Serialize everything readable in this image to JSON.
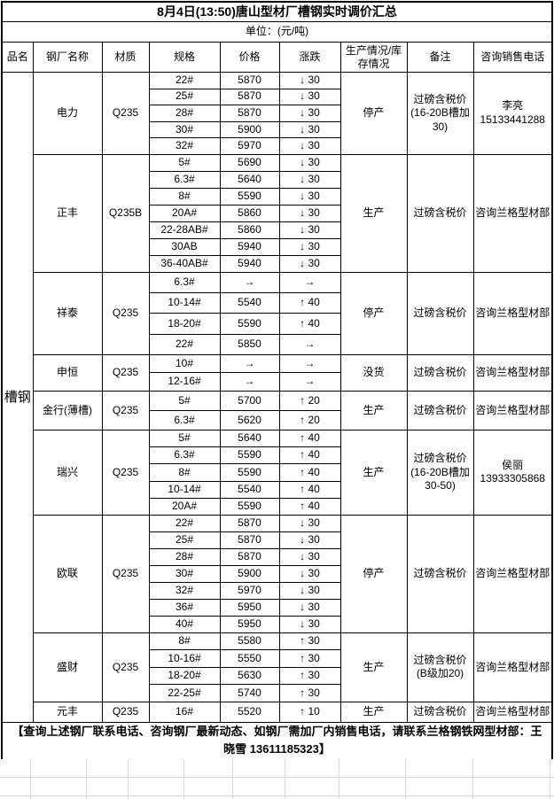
{
  "title": "8月4日(13:50)唐山型材厂槽钢实时调价汇总",
  "unit_label": "单位：(元/吨)",
  "product_name": "槽钢",
  "columns": [
    "品名",
    "钢厂名称",
    "材质",
    "规格",
    "价格",
    "涨跌",
    "生产情况/库存情况",
    "备注",
    "咨询销售电话"
  ],
  "mills": [
    {
      "name": "电力",
      "material": "Q235",
      "status": "停产",
      "remark": "过磅含税价(16-20B槽加30)",
      "contact": [
        "李亮",
        "15133441288"
      ],
      "rows": [
        [
          "22#",
          "5870",
          "↓ 30"
        ],
        [
          "25#",
          "5870",
          "↓ 30"
        ],
        [
          "28#",
          "5870",
          "↓ 30"
        ],
        [
          "30#",
          "5900",
          "↓ 30"
        ],
        [
          "32#",
          "5970",
          "↓ 30"
        ]
      ]
    },
    {
      "name": "正丰",
      "material": "Q235B",
      "status": "生产",
      "remark": "过磅含税价",
      "contact": [
        "咨询兰格型材部"
      ],
      "rows": [
        [
          "5#",
          "5690",
          "↓ 30"
        ],
        [
          "6.3#",
          "5640",
          "↓ 30"
        ],
        [
          "8#",
          "5590",
          "↓ 30"
        ],
        [
          "20A#",
          "5860",
          "↓ 30"
        ],
        [
          "22-28AB#",
          "5860",
          "↓ 30"
        ],
        [
          "30AB",
          "5940",
          "↓ 30"
        ],
        [
          "36-40AB#",
          "5940",
          "↓ 30"
        ]
      ]
    },
    {
      "name": "祥泰",
      "material": "Q235",
      "status": "停产",
      "remark": "过磅含税价",
      "contact": [
        "咨询兰格型材部"
      ],
      "rows": [
        [
          "6.3#",
          "→",
          "→"
        ],
        [
          "10-14#",
          "5540",
          "↑ 40"
        ],
        [
          "18-20#",
          "5590",
          "↑ 40"
        ],
        [
          "22#",
          "5850",
          "→"
        ]
      ]
    },
    {
      "name": "申恒",
      "material": "Q235",
      "status": "没货",
      "remark": "过磅含税价",
      "contact": [
        "咨询兰格型材部"
      ],
      "rows": [
        [
          "10#",
          "→",
          "→"
        ],
        [
          "12-16#",
          "→",
          "→"
        ]
      ]
    },
    {
      "name": "金行(薄槽)",
      "material": "Q235",
      "status": "生产",
      "remark": "过磅含税价",
      "contact": [
        "咨询兰格型材部"
      ],
      "rows": [
        [
          "5#",
          "5700",
          "↑ 20"
        ],
        [
          "6.3#",
          "5620",
          "↑ 20"
        ]
      ]
    },
    {
      "name": "瑞兴",
      "material": "Q235",
      "status": "生产",
      "remark": "过磅含税价(16-20B槽加30-50)",
      "contact": [
        "侯丽",
        "13933305868"
      ],
      "rows": [
        [
          "5#",
          "5640",
          "↑ 40"
        ],
        [
          "6.3#",
          "5590",
          "↑ 40"
        ],
        [
          "8#",
          "5590",
          "↑ 40"
        ],
        [
          "10-14#",
          "5540",
          "↑ 40"
        ],
        [
          "20A#",
          "5590",
          "↑ 40"
        ]
      ]
    },
    {
      "name": "欧联",
      "material": "Q235",
      "status": "停产",
      "remark": "过磅含税价",
      "contact": [
        "咨询兰格型材部"
      ],
      "rows": [
        [
          "22#",
          "5870",
          "↓ 30"
        ],
        [
          "25#",
          "5870",
          "↓ 30"
        ],
        [
          "28#",
          "5870",
          "↓ 30"
        ],
        [
          "30#",
          "5900",
          "↓ 30"
        ],
        [
          "32#",
          "5970",
          "↓ 30"
        ],
        [
          "36#",
          "5950",
          "↓ 30"
        ],
        [
          "40#",
          "5950",
          "↓ 30"
        ]
      ]
    },
    {
      "name": "盛财",
      "material": "Q235",
      "status": "生产",
      "remark": "过磅含税价(B级加20)",
      "contact": [
        "咨询兰格型材部"
      ],
      "rows": [
        [
          "8#",
          "5580",
          "↑ 30"
        ],
        [
          "10-16#",
          "5550",
          "↑ 30"
        ],
        [
          "18-20#",
          "5630",
          "↑ 30"
        ],
        [
          "22-25#",
          "5740",
          "↑ 30"
        ]
      ]
    },
    {
      "name": "元丰",
      "material": "Q235",
      "status": "生产",
      "remark": "过磅含税价",
      "contact": [
        "咨询兰格型材部"
      ],
      "rows": [
        [
          "16#",
          "5520",
          "↑ 10"
        ]
      ]
    }
  ],
  "footer": "【查询上述钢厂联系电话、咨询钢厂最新动态、如钢厂需加厂内销售电话，请联系兰格钢铁网型材部：王晓雪 13611185323】"
}
